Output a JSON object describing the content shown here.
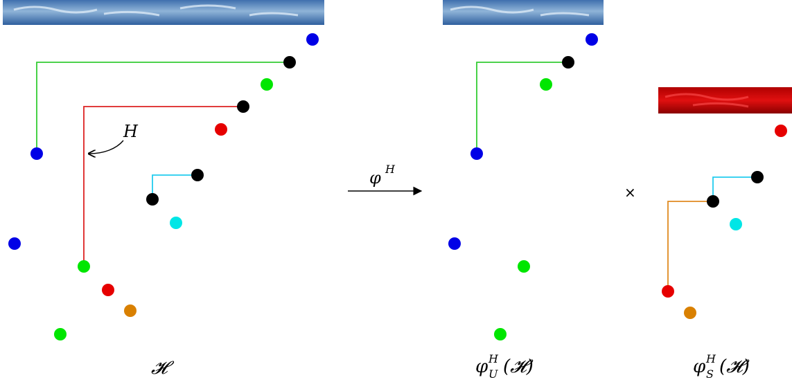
{
  "labels": {
    "left_caption": "𝓗",
    "map_symbol": "φ",
    "map_superscript": "H",
    "middle_caption_main": "φ",
    "middle_caption_sup": "H",
    "middle_caption_sub": "U",
    "middle_caption_arg": "(𝓗)",
    "right_caption_main": "φ",
    "right_caption_sup": "H",
    "right_caption_sub": "S",
    "right_caption_arg": "(𝓗)",
    "hook_label": "H",
    "times_symbol": "×"
  },
  "colors": {
    "blue": "#0000e6",
    "green": "#00e600",
    "red": "#e60000",
    "black": "#000000",
    "cyan": "#00e6e6",
    "orange": "#d98000",
    "line_green": "#33cc33",
    "line_red": "#dd2222",
    "line_cyan": "#22ccee",
    "line_orange": "#e08a20"
  }
}
